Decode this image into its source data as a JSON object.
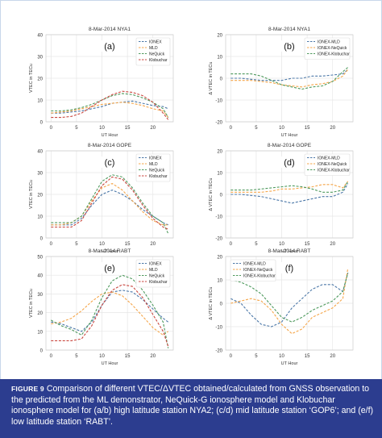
{
  "figure": {
    "label": "FIGURE 9",
    "caption": "Comparison of different VTEC/ΔVTEC obtained/calculated from GNSS observation to the predicted from the ML demonstrator, NeQuick-G ionosphere model and Klobuchar ionosphere model for (a/b) high latitude station NYA2; (c/d) mid latitude station ‘GOP6’; and (e/f) low latitude station ‘RABT’."
  },
  "colors": {
    "IONEX": "#4c78a8",
    "MLD": "#f5a64a",
    "NeQuick": "#4f9a5e",
    "Klobuchar": "#c9473f",
    "IONEX-MLD": "#4c78a8",
    "IONEX-NeQuick": "#f5a64a",
    "IONEX-Klobuchar": "#4f9a5e",
    "caption_bg": "#2c3d8f",
    "border": "#c8d7ea"
  },
  "chart_data": [
    {
      "id": "a",
      "panel_label": "(a)",
      "type": "line",
      "title": "8-Mar-2014  NYA1",
      "xlabel": "UT Hour",
      "ylabel": "VTEC in TECu",
      "xlim": [
        -1,
        24
      ],
      "ylim": [
        0,
        40
      ],
      "xticks": [
        0,
        5,
        10,
        15,
        20
      ],
      "yticks": [
        0,
        10,
        20,
        30,
        40
      ],
      "legend_position": "top-right",
      "x": [
        0,
        2,
        4,
        6,
        8,
        10,
        12,
        14,
        16,
        18,
        20,
        22,
        23
      ],
      "series": [
        {
          "name": "IONEX",
          "values": [
            4,
            4,
            4.5,
            5,
            6,
            7,
            8.5,
            9,
            9.5,
            8.5,
            7.5,
            7,
            6
          ]
        },
        {
          "name": "MLD",
          "values": [
            4,
            4.5,
            5,
            6,
            7,
            8,
            8.5,
            9,
            8.5,
            7.5,
            6,
            5,
            2
          ]
        },
        {
          "name": "NeQuick",
          "values": [
            5,
            5,
            5.5,
            6.5,
            8,
            10,
            12,
            13,
            12.5,
            11,
            9,
            6,
            2
          ]
        },
        {
          "name": "Klobuchar",
          "values": [
            2,
            2,
            2.5,
            4,
            7,
            10,
            12.5,
            14,
            13.5,
            12,
            9,
            4,
            1
          ]
        }
      ]
    },
    {
      "id": "b",
      "panel_label": "(b)",
      "type": "line",
      "title": "8-Mar-2014  NYA1",
      "xlabel": "UT Hour",
      "ylabel": "Δ VTEC in TECu",
      "xlim": [
        -1,
        24
      ],
      "ylim": [
        -20,
        20
      ],
      "xticks": [
        0,
        5,
        10,
        15,
        20
      ],
      "yticks": [
        -20,
        -10,
        0,
        10,
        20
      ],
      "legend_position": "top-right",
      "x": [
        0,
        2,
        4,
        6,
        8,
        10,
        12,
        14,
        16,
        18,
        20,
        22,
        23
      ],
      "series": [
        {
          "name": "IONEX-MLD",
          "values": [
            0,
            0,
            -0.5,
            -1,
            -1,
            -1,
            0,
            0,
            1,
            1,
            1.5,
            2,
            4
          ]
        },
        {
          "name": "IONEX-NeQuick",
          "values": [
            -1,
            -1,
            -1,
            -1.5,
            -2,
            -3,
            -3.5,
            -4,
            -3,
            -2.5,
            -1.5,
            1,
            4
          ]
        },
        {
          "name": "IONEX-Klobuchar",
          "values": [
            2,
            2,
            2,
            1,
            -1,
            -3,
            -4,
            -5,
            -4,
            -3.5,
            -1.5,
            3,
            5
          ]
        }
      ]
    },
    {
      "id": "c",
      "panel_label": "(c)",
      "type": "line",
      "title": "8-Mar-2014  GOPE",
      "xlabel": "UT Hour",
      "ylabel": "VTEC in TECu",
      "xlim": [
        -1,
        24
      ],
      "ylim": [
        0,
        40
      ],
      "xticks": [
        0,
        5,
        10,
        15,
        20
      ],
      "yticks": [
        0,
        10,
        20,
        30,
        40
      ],
      "legend_position": "top-right",
      "x": [
        0,
        2,
        4,
        6,
        8,
        10,
        12,
        14,
        16,
        18,
        20,
        22,
        23
      ],
      "series": [
        {
          "name": "IONEX",
          "values": [
            6,
            6,
            6,
            9,
            15,
            20,
            22,
            20,
            17,
            13,
            10,
            7,
            6
          ]
        },
        {
          "name": "MLD",
          "values": [
            6,
            6,
            7,
            10,
            17,
            23,
            25,
            22,
            17,
            12,
            8,
            6,
            6
          ]
        },
        {
          "name": "NeQuick",
          "values": [
            7,
            7,
            7,
            10,
            18,
            26,
            29,
            28,
            23,
            16,
            10,
            7,
            2
          ]
        },
        {
          "name": "Klobuchar",
          "values": [
            5,
            5,
            5,
            8,
            16,
            24,
            28,
            27,
            22,
            15,
            9,
            5,
            4
          ]
        }
      ]
    },
    {
      "id": "d",
      "panel_label": "(d)",
      "type": "line",
      "title": "8-Mar-2014  GOPE",
      "xlabel": "UT Hour",
      "ylabel": "Δ VTEC in TECu",
      "xlim": [
        -1,
        24
      ],
      "ylim": [
        -20,
        20
      ],
      "xticks": [
        0,
        5,
        10,
        15,
        20
      ],
      "yticks": [
        -20,
        -10,
        0,
        10,
        20
      ],
      "legend_position": "top-right",
      "x": [
        0,
        2,
        4,
        6,
        8,
        10,
        12,
        14,
        16,
        18,
        20,
        22,
        23
      ],
      "series": [
        {
          "name": "IONEX-MLD",
          "values": [
            0,
            0,
            -0.5,
            -1,
            -2,
            -3,
            -4,
            -3,
            -2,
            -1,
            -1,
            1,
            5
          ]
        },
        {
          "name": "IONEX-NeQuick",
          "values": [
            1,
            1,
            1,
            1,
            1.5,
            2.5,
            2.5,
            3,
            3.5,
            4.5,
            4.5,
            3,
            6
          ]
        },
        {
          "name": "IONEX-Klobuchar",
          "values": [
            2,
            2,
            2,
            2.5,
            3,
            3.5,
            4,
            3.5,
            2.5,
            1,
            1,
            2,
            6
          ]
        }
      ]
    },
    {
      "id": "e",
      "panel_label": "(e)",
      "type": "line",
      "title": "8-Mar-2014  RABT",
      "xlabel": "UT Hour",
      "ylabel": "VTEC in TECu",
      "xlim": [
        -1,
        24
      ],
      "ylim": [
        0,
        50
      ],
      "xticks": [
        0,
        5,
        10,
        15,
        20
      ],
      "yticks": [
        0,
        10,
        20,
        30,
        40,
        50
      ],
      "legend_position": "top-right",
      "x": [
        0,
        2,
        4,
        6,
        8,
        10,
        12,
        14,
        16,
        18,
        20,
        22,
        23
      ],
      "series": [
        {
          "name": "IONEX",
          "values": [
            15,
            14,
            12,
            10,
            15,
            24,
            31,
            32,
            31,
            27,
            22,
            17,
            15
          ]
        },
        {
          "name": "MLD",
          "values": [
            14,
            15,
            17,
            21,
            26,
            30,
            31,
            29,
            24,
            18,
            12,
            8,
            10
          ]
        },
        {
          "name": "NeQuick",
          "values": [
            16,
            13,
            11,
            8,
            16,
            28,
            37,
            40,
            38,
            32,
            24,
            15,
            1
          ]
        },
        {
          "name": "Klobuchar",
          "values": [
            5,
            5,
            5,
            6,
            13,
            24,
            32,
            35,
            34,
            28,
            19,
            10,
            2
          ]
        }
      ]
    },
    {
      "id": "f",
      "panel_label": "(f)",
      "type": "line",
      "title": "8-Mar-2014  RABT",
      "xlabel": "UT Hour",
      "ylabel": "Δ VTEC in TECu",
      "xlim": [
        -1,
        24
      ],
      "ylim": [
        -20,
        20
      ],
      "xticks": [
        0,
        5,
        10,
        15,
        20
      ],
      "yticks": [
        -20,
        -10,
        0,
        10,
        20
      ],
      "legend_position": "top-left",
      "x": [
        0,
        2,
        4,
        6,
        8,
        10,
        12,
        14,
        16,
        18,
        20,
        22,
        23
      ],
      "series": [
        {
          "name": "IONEX-MLD",
          "values": [
            2,
            0,
            -5,
            -9,
            -10,
            -8,
            -2,
            2,
            6,
            8,
            8,
            5,
            13
          ]
        },
        {
          "name": "IONEX-NeQuick",
          "values": [
            0,
            1,
            2,
            1,
            -3,
            -9,
            -13,
            -11,
            -6,
            -4,
            -2,
            2,
            15
          ]
        },
        {
          "name": "IONEX-Klobuchar",
          "values": [
            10,
            9,
            7,
            4,
            -1,
            -6,
            -8,
            -6,
            -3,
            -1,
            1,
            5,
            13
          ]
        }
      ]
    }
  ]
}
